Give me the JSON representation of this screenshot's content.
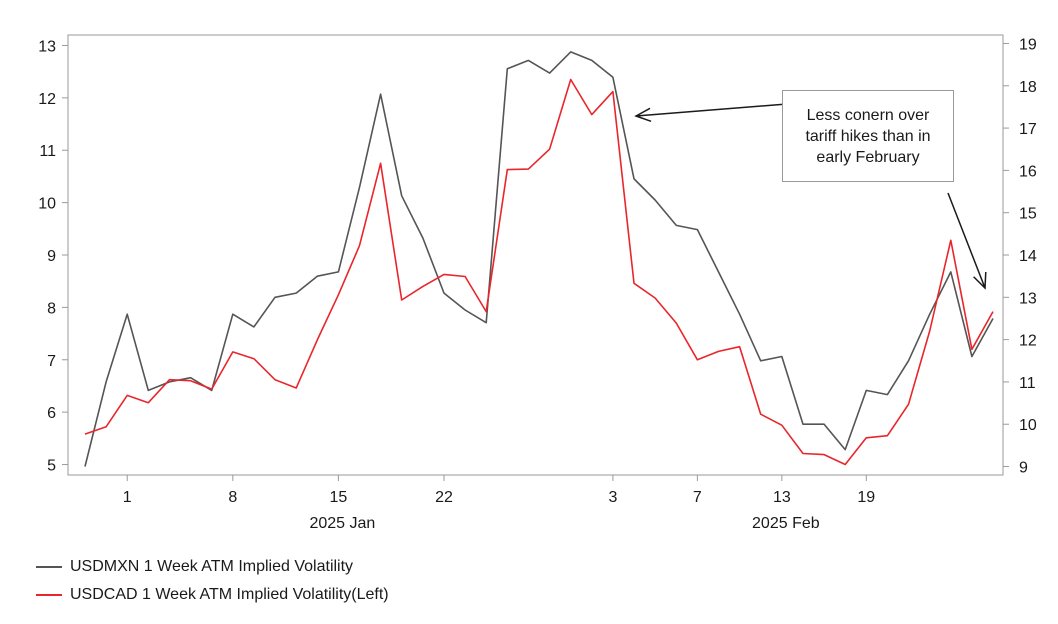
{
  "chart_data": {
    "type": "line",
    "left_axis": {
      "ylim": [
        4.8,
        13.2
      ],
      "ticks": [
        5,
        6,
        7,
        8,
        9,
        10,
        11,
        12,
        13
      ]
    },
    "right_axis": {
      "ylim": [
        8.8,
        19.2
      ],
      "ticks": [
        9,
        10,
        11,
        12,
        13,
        14,
        15,
        16,
        17,
        18,
        19
      ]
    },
    "x_ticks": [
      {
        "label": "1",
        "date": "2025-01-01"
      },
      {
        "label": "8",
        "date": "2025-01-08"
      },
      {
        "label": "15",
        "date": "2025-01-15"
      },
      {
        "label": "22",
        "date": "2025-01-22"
      },
      {
        "label": "3",
        "date": "2025-02-03"
      },
      {
        "label": "7",
        "date": "2025-02-07"
      },
      {
        "label": "13",
        "date": "2025-02-13"
      },
      {
        "label": "19",
        "date": "2025-02-19"
      }
    ],
    "x_group_labels": [
      {
        "label": "2025 Jan",
        "date": "2025-01-15"
      },
      {
        "label": "2025 Feb",
        "date": "2025-02-13"
      }
    ],
    "dates": [
      "2024-12-30",
      "2024-12-31",
      "2025-01-01",
      "2025-01-02",
      "2025-01-03",
      "2025-01-06",
      "2025-01-07",
      "2025-01-08",
      "2025-01-09",
      "2025-01-10",
      "2025-01-13",
      "2025-01-14",
      "2025-01-15",
      "2025-01-16",
      "2025-01-17",
      "2025-01-20",
      "2025-01-21",
      "2025-01-22",
      "2025-01-23",
      "2025-01-24",
      "2025-01-27",
      "2025-01-28",
      "2025-01-29",
      "2025-01-30",
      "2025-01-31",
      "2025-02-03",
      "2025-02-04",
      "2025-02-05",
      "2025-02-06",
      "2025-02-07",
      "2025-02-10",
      "2025-02-11",
      "2025-02-12",
      "2025-02-13",
      "2025-02-14",
      "2025-02-17",
      "2025-02-18",
      "2025-02-19",
      "2025-02-20",
      "2025-02-21",
      "2025-02-24",
      "2025-02-25",
      "2025-02-26",
      "2025-02-27"
    ],
    "series": [
      {
        "name": "USDMXN 1 Week ATM Implied Volatility",
        "axis": "right",
        "color": "#555555",
        "values": [
          9.0,
          11.0,
          12.6,
          10.8,
          11.0,
          11.1,
          10.8,
          12.6,
          12.3,
          13.0,
          13.1,
          13.5,
          13.6,
          15.6,
          17.8,
          15.4,
          14.4,
          13.1,
          12.7,
          12.4,
          18.4,
          18.6,
          18.3,
          18.8,
          18.6,
          18.2,
          15.8,
          15.3,
          14.7,
          14.6,
          13.6,
          12.6,
          11.5,
          11.6,
          10.0,
          10.0,
          9.4,
          10.8,
          10.7,
          11.5,
          12.6,
          13.6,
          11.6,
          12.5
        ]
      },
      {
        "name": "USDCAD 1 Week ATM Implied Volatility(Left)",
        "axis": "left",
        "color": "#e8262b",
        "values": [
          5.58,
          5.72,
          6.32,
          6.18,
          6.62,
          6.6,
          6.44,
          7.15,
          7.02,
          6.62,
          6.46,
          7.38,
          8.24,
          9.18,
          10.75,
          8.14,
          8.4,
          8.63,
          8.59,
          7.92,
          10.63,
          10.64,
          11.02,
          12.35,
          11.68,
          12.12,
          8.46,
          8.18,
          7.7,
          7.0,
          7.16,
          7.25,
          5.96,
          5.75,
          5.21,
          5.19,
          5.0,
          5.51,
          5.55,
          6.15,
          7.55,
          9.28,
          7.2,
          7.92
        ]
      }
    ],
    "annotations": [
      {
        "text": "Less conern over tariff hikes than in early February"
      }
    ]
  }
}
